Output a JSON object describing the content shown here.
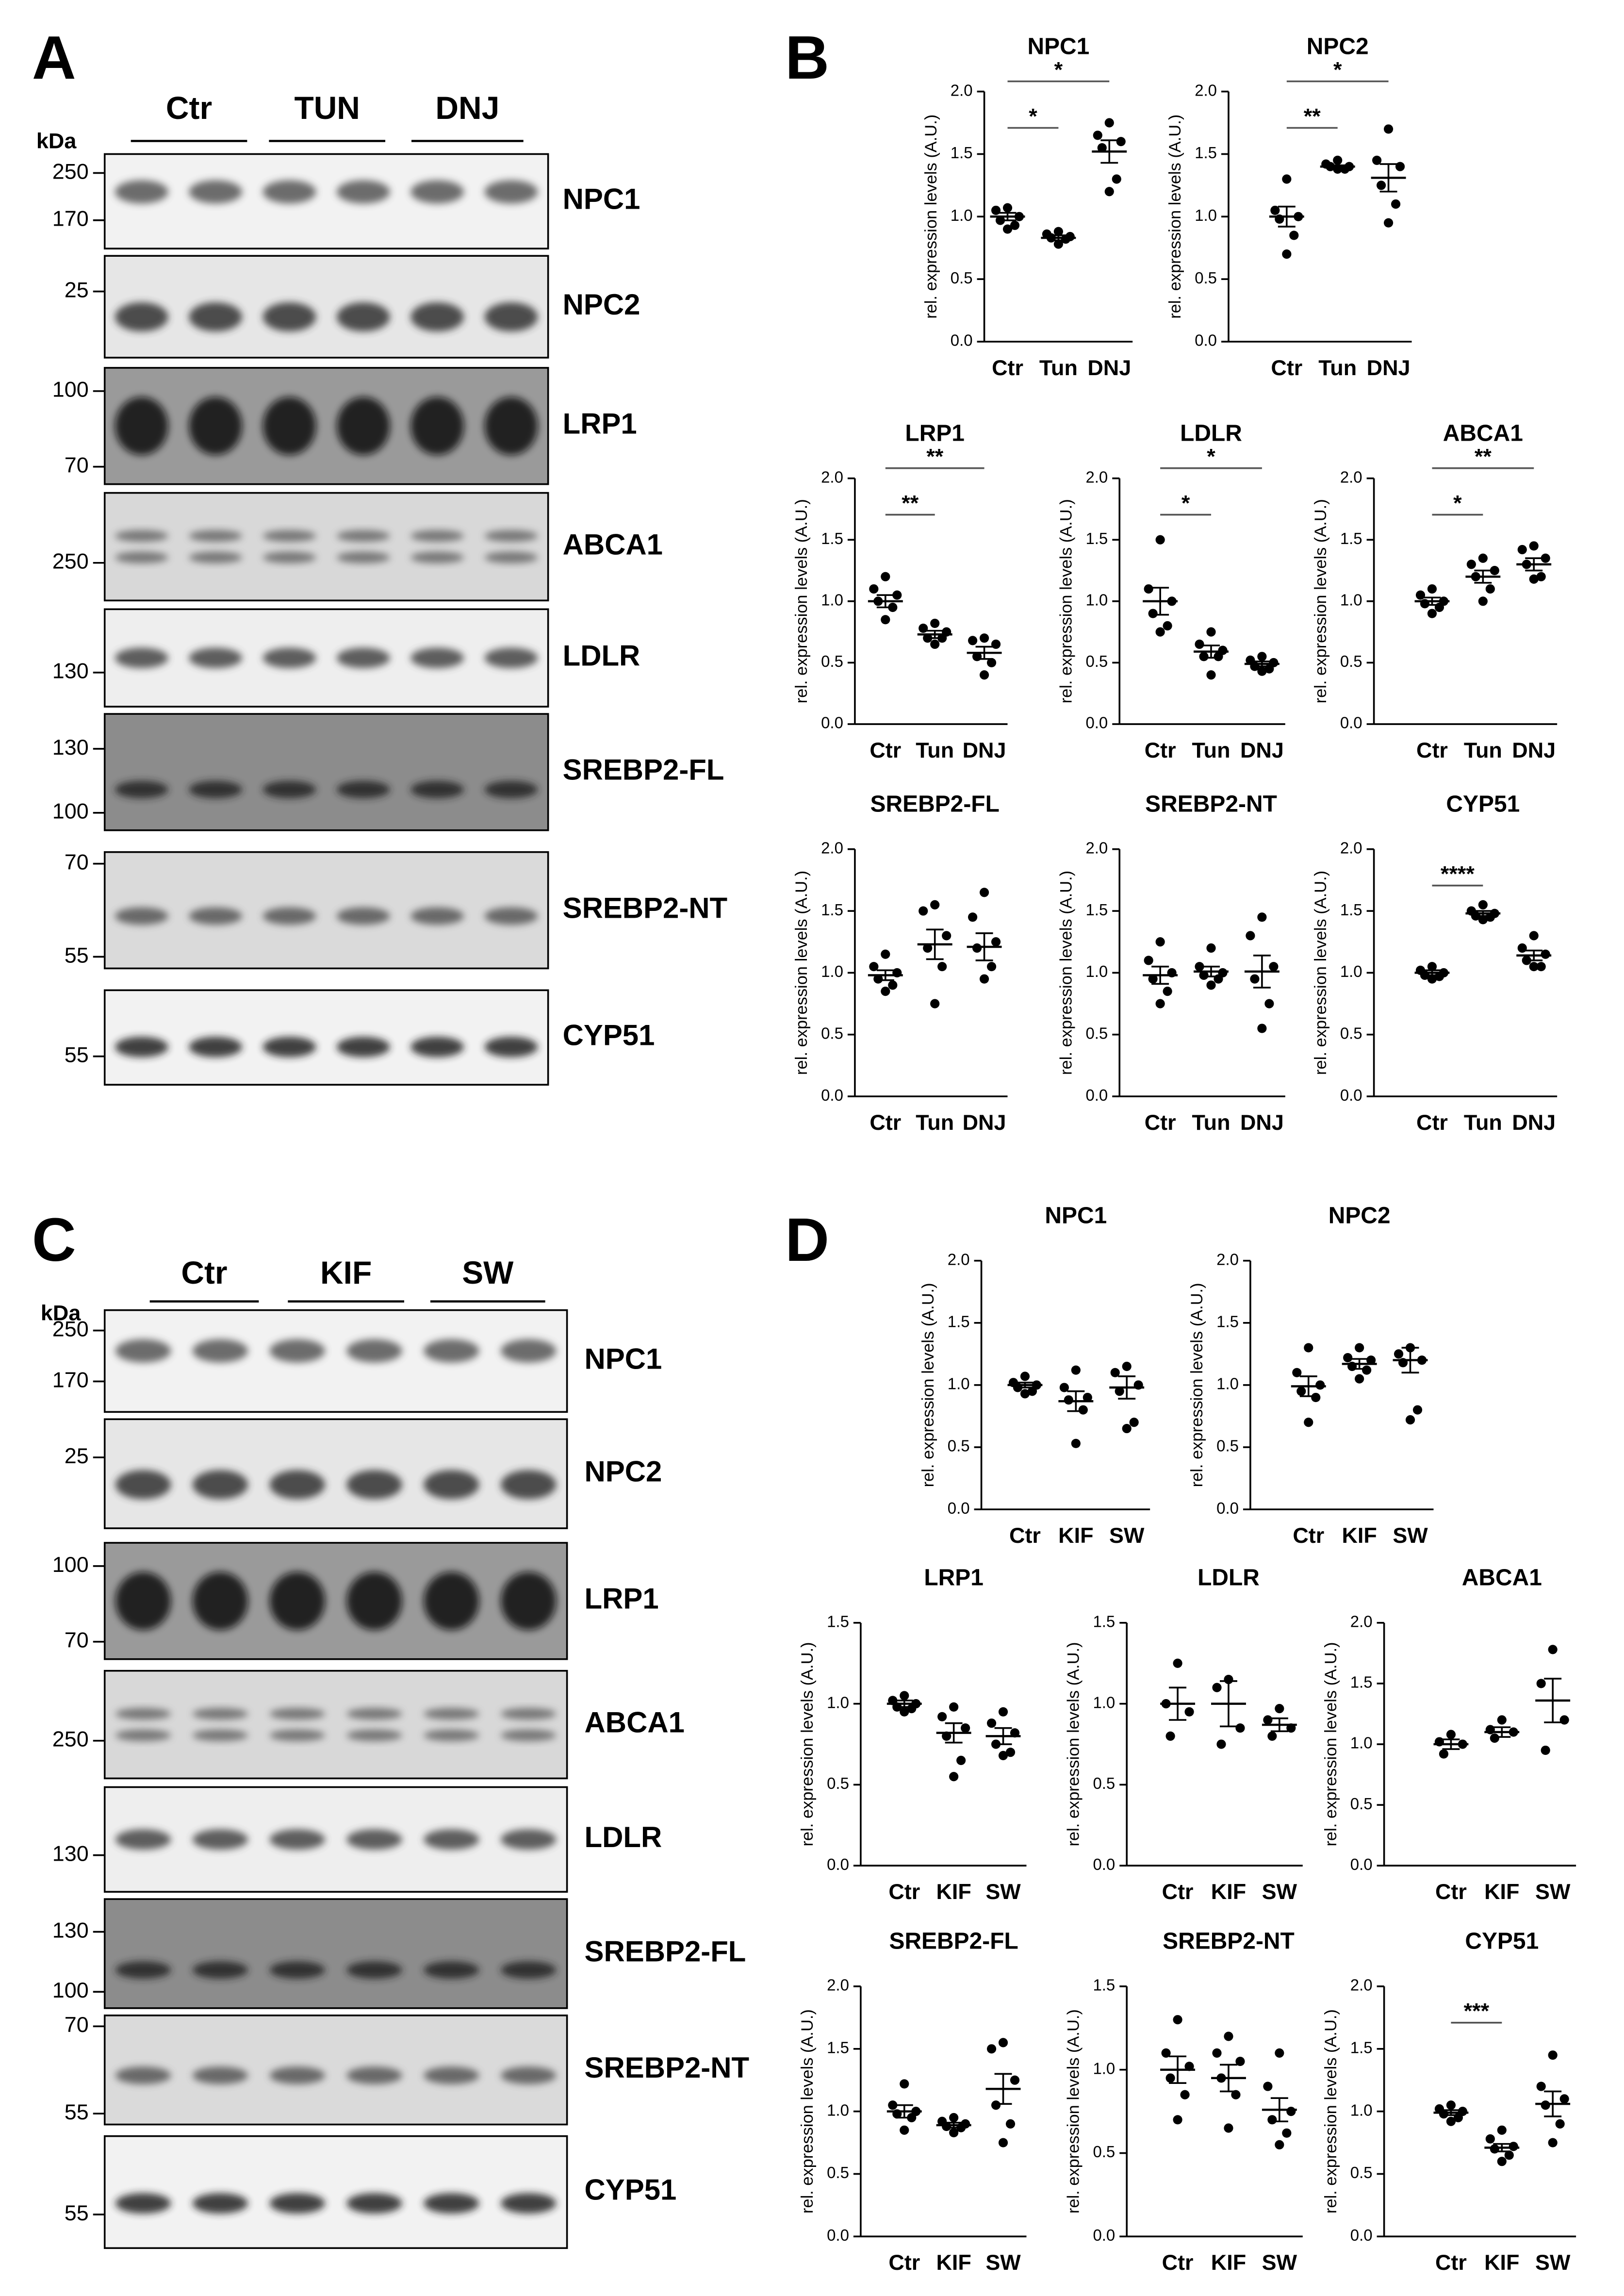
{
  "panels": [
    "A",
    "B",
    "C",
    "D"
  ],
  "blots": [
    {
      "groups": [
        "Ctr",
        "TUN",
        "DNJ"
      ],
      "unit": "kDa",
      "rows": [
        {
          "protein": "NPC1",
          "markers": [
            250,
            170
          ]
        },
        {
          "protein": "NPC2",
          "markers": [
            25
          ]
        },
        {
          "protein": "LRP1",
          "markers": [
            100,
            70
          ]
        },
        {
          "protein": "ABCA1",
          "markers": [
            250
          ]
        },
        {
          "protein": "LDLR",
          "markers": [
            130
          ]
        },
        {
          "protein": "SREBP2-FL",
          "markers": [
            130,
            100
          ]
        },
        {
          "protein": "SREBP2-NT",
          "markers": [
            70,
            55
          ]
        },
        {
          "protein": "CYP51",
          "markers": [
            55
          ]
        }
      ]
    },
    {
      "groups": [
        "Ctr",
        "KIF",
        "SW"
      ],
      "unit": "kDa",
      "rows": [
        {
          "protein": "NPC1",
          "markers": [
            250,
            170
          ]
        },
        {
          "protein": "NPC2",
          "markers": [
            25
          ]
        },
        {
          "protein": "LRP1",
          "markers": [
            100,
            70
          ]
        },
        {
          "protein": "ABCA1",
          "markers": [
            250
          ]
        },
        {
          "protein": "LDLR",
          "markers": [
            130
          ]
        },
        {
          "protein": "SREBP2-FL",
          "markers": [
            130,
            100
          ]
        },
        {
          "protein": "SREBP2-NT",
          "markers": [
            70,
            55
          ]
        },
        {
          "protein": "CYP51",
          "markers": [
            55
          ]
        }
      ]
    }
  ],
  "chart_data": [
    {
      "type": "dotplot",
      "title": "NPC1",
      "ylabel": "rel. expression levels (A.U.)",
      "categories": [
        "Ctr",
        "Tun",
        "DNJ"
      ],
      "points": [
        [
          1.07,
          1.05,
          1.0,
          0.97,
          0.93,
          0.9
        ],
        [
          0.88,
          0.86,
          0.84,
          0.83,
          0.82,
          0.78
        ],
        [
          1.75,
          1.65,
          1.6,
          1.55,
          1.3,
          1.2
        ]
      ],
      "mean": [
        1.0,
        0.83,
        1.52
      ],
      "sem": [
        0.03,
        0.02,
        0.09
      ],
      "comparisons": [
        {
          "groups": [
            0,
            1
          ],
          "label": "*"
        },
        {
          "groups": [
            0,
            2
          ],
          "label": "*"
        }
      ],
      "ylim": [
        0,
        2
      ],
      "yticks": [
        {
          "value": 0,
          "label": "0.0"
        },
        0.5,
        {
          "value": 1,
          "label": "1.0"
        },
        1.5,
        {
          "value": 2,
          "label": "2.0"
        }
      ]
    },
    {
      "type": "dotplot",
      "title": "NPC2",
      "ylabel": "rel. expression levels (A.U.)",
      "categories": [
        "Ctr",
        "Tun",
        "DNJ"
      ],
      "points": [
        [
          1.3,
          1.05,
          1.0,
          0.98,
          0.85,
          0.7
        ],
        [
          1.45,
          1.42,
          1.4,
          1.4,
          1.38,
          1.38
        ],
        [
          1.7,
          1.45,
          1.4,
          1.25,
          1.1,
          0.95
        ]
      ],
      "mean": [
        1.0,
        1.4,
        1.31
      ],
      "sem": [
        0.08,
        0.01,
        0.11
      ],
      "comparisons": [
        {
          "groups": [
            0,
            1
          ],
          "label": "**"
        },
        {
          "groups": [
            0,
            2
          ],
          "label": "*"
        }
      ],
      "ylim": [
        0,
        2
      ],
      "yticks": [
        {
          "value": 0,
          "label": "0.0"
        },
        0.5,
        {
          "value": 1,
          "label": "1.0"
        },
        1.5,
        {
          "value": 2,
          "label": "2.0"
        }
      ]
    },
    {
      "type": "dotplot",
      "title": "LRP1",
      "ylabel": "rel. expression levels (A.U.)",
      "categories": [
        "Ctr",
        "Tun",
        "DNJ"
      ],
      "points": [
        [
          1.2,
          1.1,
          1.05,
          1.0,
          0.95,
          0.85
        ],
        [
          0.82,
          0.78,
          0.75,
          0.7,
          0.7,
          0.65
        ],
        [
          0.7,
          0.68,
          0.65,
          0.55,
          0.5,
          0.4
        ]
      ],
      "mean": [
        1.0,
        0.73,
        0.58
      ],
      "sem": [
        0.05,
        0.03,
        0.05
      ],
      "comparisons": [
        {
          "groups": [
            0,
            1
          ],
          "label": "**"
        },
        {
          "groups": [
            0,
            2
          ],
          "label": "**"
        }
      ],
      "ylim": [
        0,
        2
      ],
      "yticks": [
        {
          "value": 0,
          "label": "0.0"
        },
        0.5,
        {
          "value": 1,
          "label": "1.0"
        },
        1.5,
        {
          "value": 2,
          "label": "2.0"
        }
      ]
    },
    {
      "type": "dotplot",
      "title": "LDLR",
      "ylabel": "rel. expression levels (A.U.)",
      "categories": [
        "Ctr",
        "Tun",
        "DNJ"
      ],
      "points": [
        [
          1.5,
          1.1,
          1.0,
          0.9,
          0.8,
          0.75
        ],
        [
          0.75,
          0.65,
          0.6,
          0.55,
          0.55,
          0.4
        ],
        [
          0.55,
          0.52,
          0.5,
          0.47,
          0.45,
          0.43
        ]
      ],
      "mean": [
        1.0,
        0.59,
        0.49
      ],
      "sem": [
        0.11,
        0.05,
        0.02
      ],
      "comparisons": [
        {
          "groups": [
            0,
            1
          ],
          "label": "*"
        },
        {
          "groups": [
            0,
            2
          ],
          "label": "*"
        }
      ],
      "ylim": [
        0,
        2
      ],
      "yticks": [
        {
          "value": 0,
          "label": "0.0"
        },
        0.5,
        {
          "value": 1,
          "label": "1.0"
        },
        1.5,
        {
          "value": 2,
          "label": "2.0"
        }
      ]
    },
    {
      "type": "dotplot",
      "title": "ABCA1",
      "ylabel": "rel. expression levels (A.U.)",
      "categories": [
        "Ctr",
        "Tun",
        "DNJ"
      ],
      "points": [
        [
          1.1,
          1.05,
          1.0,
          0.98,
          0.95,
          0.9
        ],
        [
          1.35,
          1.3,
          1.25,
          1.2,
          1.1,
          1.0
        ],
        [
          1.45,
          1.42,
          1.35,
          1.3,
          1.2,
          1.18
        ]
      ],
      "mean": [
        1.0,
        1.2,
        1.3
      ],
      "sem": [
        0.03,
        0.05,
        0.05
      ],
      "comparisons": [
        {
          "groups": [
            0,
            1
          ],
          "label": "*"
        },
        {
          "groups": [
            0,
            2
          ],
          "label": "**"
        }
      ],
      "ylim": [
        0,
        2
      ],
      "yticks": [
        {
          "value": 0,
          "label": "0.0"
        },
        0.5,
        {
          "value": 1,
          "label": "1.0"
        },
        1.5,
        {
          "value": 2,
          "label": "2.0"
        }
      ]
    },
    {
      "type": "dotplot",
      "title": "SREBP2-FL",
      "ylabel": "rel. expression levels (A.U.)",
      "categories": [
        "Ctr",
        "Tun",
        "DNJ"
      ],
      "points": [
        [
          1.15,
          1.05,
          1.0,
          0.95,
          0.9,
          0.85
        ],
        [
          1.55,
          1.5,
          1.3,
          1.2,
          1.05,
          0.75
        ],
        [
          1.65,
          1.45,
          1.25,
          1.2,
          1.05,
          0.95
        ]
      ],
      "mean": [
        0.98,
        1.23,
        1.21
      ],
      "sem": [
        0.04,
        0.12,
        0.11
      ],
      "comparisons": [],
      "ylim": [
        0,
        2
      ],
      "yticks": [
        {
          "value": 0,
          "label": "0.0"
        },
        0.5,
        {
          "value": 1,
          "label": "1.0"
        },
        1.5,
        {
          "value": 2,
          "label": "2.0"
        }
      ]
    },
    {
      "type": "dotplot",
      "title": "SREBP2-NT",
      "ylabel": "rel. expression levels (A.U.)",
      "categories": [
        "Ctr",
        "Tun",
        "DNJ"
      ],
      "points": [
        [
          1.25,
          1.1,
          1.0,
          0.95,
          0.85,
          0.75
        ],
        [
          1.2,
          1.05,
          1.0,
          0.98,
          0.95,
          0.9
        ],
        [
          1.45,
          1.3,
          1.05,
          0.95,
          0.75,
          0.55
        ]
      ],
      "mean": [
        0.98,
        1.01,
        1.01
      ],
      "sem": [
        0.07,
        0.04,
        0.13
      ],
      "comparisons": [],
      "ylim": [
        0,
        2
      ],
      "yticks": [
        {
          "value": 0,
          "label": "0.0"
        },
        0.5,
        {
          "value": 1,
          "label": "1.0"
        },
        1.5,
        {
          "value": 2,
          "label": "2.0"
        }
      ]
    },
    {
      "type": "dotplot",
      "title": "CYP51",
      "ylabel": "rel. expression levels (A.U.)",
      "categories": [
        "Ctr",
        "Tun",
        "DNJ"
      ],
      "points": [
        [
          1.05,
          1.02,
          1.0,
          0.98,
          0.97,
          0.95
        ],
        [
          1.55,
          1.5,
          1.48,
          1.46,
          1.45,
          1.43
        ],
        [
          1.3,
          1.2,
          1.15,
          1.1,
          1.05,
          1.05
        ]
      ],
      "mean": [
        1.0,
        1.48,
        1.14
      ],
      "sem": [
        0.02,
        0.02,
        0.04
      ],
      "comparisons": [
        {
          "groups": [
            0,
            1
          ],
          "label": "****"
        }
      ],
      "ylim": [
        0,
        2
      ],
      "yticks": [
        {
          "value": 0,
          "label": "0.0"
        },
        0.5,
        {
          "value": 1,
          "label": "1.0"
        },
        1.5,
        {
          "value": 2,
          "label": "2.0"
        }
      ]
    },
    {
      "type": "dotplot",
      "title": "NPC1",
      "ylabel": "rel. expression levels (A.U.)",
      "categories": [
        "Ctr",
        "KIF",
        "SW"
      ],
      "points": [
        [
          1.07,
          1.02,
          1.0,
          0.98,
          0.95,
          0.93
        ],
        [
          1.12,
          0.98,
          0.9,
          0.88,
          0.8,
          0.53
        ],
        [
          1.15,
          1.1,
          1.0,
          0.95,
          0.7,
          0.65
        ]
      ],
      "mean": [
        1.0,
        0.87,
        0.98
      ],
      "sem": [
        0.02,
        0.08,
        0.09
      ],
      "comparisons": [],
      "ylim": [
        0,
        2
      ],
      "yticks": [
        {
          "value": 0,
          "label": "0.0"
        },
        0.5,
        {
          "value": 1,
          "label": "1.0"
        },
        1.5,
        {
          "value": 2,
          "label": "2.0"
        }
      ]
    },
    {
      "type": "dotplot",
      "title": "NPC2",
      "ylabel": "rel. expression levels (A.U.)",
      "categories": [
        "Ctr",
        "KIF",
        "SW"
      ],
      "points": [
        [
          1.3,
          1.1,
          1.0,
          0.95,
          0.9,
          0.7
        ],
        [
          1.3,
          1.22,
          1.2,
          1.15,
          1.12,
          1.05
        ],
        [
          1.3,
          1.25,
          1.2,
          1.18,
          0.8,
          0.72
        ]
      ],
      "mean": [
        0.99,
        1.17,
        1.2
      ],
      "sem": [
        0.08,
        0.04,
        0.1
      ],
      "comparisons": [],
      "ylim": [
        0,
        2
      ],
      "yticks": [
        {
          "value": 0,
          "label": "0.0"
        },
        0.5,
        {
          "value": 1,
          "label": "1.0"
        },
        1.5,
        {
          "value": 2,
          "label": "2.0"
        }
      ]
    },
    {
      "type": "dotplot",
      "title": "LRP1",
      "ylabel": "rel. expression levels (A.U.)",
      "categories": [
        "Ctr",
        "KIF",
        "SW"
      ],
      "points": [
        [
          1.05,
          1.02,
          1.0,
          0.98,
          0.97,
          0.95
        ],
        [
          0.98,
          0.92,
          0.85,
          0.8,
          0.65,
          0.55
        ],
        [
          0.95,
          0.88,
          0.82,
          0.75,
          0.7,
          0.68
        ]
      ],
      "mean": [
        1.0,
        0.82,
        0.8
      ],
      "sem": [
        0.02,
        0.06,
        0.05
      ],
      "comparisons": [],
      "ylim": [
        0,
        1.5
      ],
      "yticks": [
        {
          "value": 0,
          "label": "0.0"
        },
        0.5,
        {
          "value": 1,
          "label": "1.0"
        },
        1.5
      ]
    },
    {
      "type": "dotplot",
      "title": "LDLR",
      "ylabel": "rel. expression levels (A.U.)",
      "categories": [
        "Ctr",
        "KIF",
        "SW"
      ],
      "points": [
        [
          1.25,
          1.0,
          0.95,
          0.8
        ],
        [
          1.15,
          1.1,
          0.85,
          0.75
        ],
        [
          0.97,
          0.9,
          0.85,
          0.8
        ]
      ],
      "mean": [
        1.0,
        1.0,
        0.87
      ],
      "sem": [
        0.1,
        0.14,
        0.04
      ],
      "comparisons": [],
      "ylim": [
        0,
        1.5
      ],
      "yticks": [
        {
          "value": 0,
          "label": "0.0"
        },
        0.5,
        {
          "value": 1,
          "label": "1.0"
        },
        1.5
      ]
    },
    {
      "type": "dotplot",
      "title": "ABCA1",
      "ylabel": "rel. expression levels (A.U.)",
      "categories": [
        "Ctr",
        "KIF",
        "SW"
      ],
      "points": [
        [
          1.08,
          1.02,
          1.0,
          0.92
        ],
        [
          1.2,
          1.12,
          1.1,
          1.05
        ],
        [
          1.78,
          1.5,
          1.2,
          0.95
        ]
      ],
      "mean": [
        1.0,
        1.1,
        1.36
      ],
      "sem": [
        0.04,
        0.04,
        0.18
      ],
      "comparisons": [],
      "ylim": [
        0,
        2
      ],
      "yticks": [
        {
          "value": 0,
          "label": "0.0"
        },
        0.5,
        {
          "value": 1,
          "label": "1.0"
        },
        1.5,
        {
          "value": 2,
          "label": "2.0"
        }
      ]
    },
    {
      "type": "dotplot",
      "title": "SREBP2-FL",
      "ylabel": "rel. expression levels (A.U.)",
      "categories": [
        "Ctr",
        "KIF",
        "SW"
      ],
      "points": [
        [
          1.22,
          1.05,
          1.0,
          0.98,
          0.95,
          0.85
        ],
        [
          0.95,
          0.92,
          0.9,
          0.88,
          0.87,
          0.83
        ],
        [
          1.55,
          1.5,
          1.25,
          1.05,
          0.9,
          0.75
        ]
      ],
      "mean": [
        1.0,
        0.89,
        1.18
      ],
      "sem": [
        0.05,
        0.02,
        0.12
      ],
      "comparisons": [],
      "ylim": [
        0,
        2
      ],
      "yticks": [
        {
          "value": 0,
          "label": "0.0"
        },
        0.5,
        {
          "value": 1,
          "label": "1.0"
        },
        1.5,
        {
          "value": 2,
          "label": "2.0"
        }
      ]
    },
    {
      "type": "dotplot",
      "title": "SREBP2-NT",
      "ylabel": "rel. expression levels (A.U.)",
      "categories": [
        "Ctr",
        "KIF",
        "SW"
      ],
      "points": [
        [
          1.3,
          1.1,
          1.02,
          0.95,
          0.85,
          0.7
        ],
        [
          1.2,
          1.1,
          1.05,
          0.95,
          0.85,
          0.65
        ],
        [
          1.1,
          0.9,
          0.75,
          0.7,
          0.62,
          0.55
        ]
      ],
      "mean": [
        1.0,
        0.95,
        0.76
      ],
      "sem": [
        0.08,
        0.08,
        0.07
      ],
      "comparisons": [],
      "ylim": [
        0,
        1.5
      ],
      "yticks": [
        {
          "value": 0,
          "label": "0.0"
        },
        0.5,
        {
          "value": 1,
          "label": "1.0"
        },
        1.5
      ]
    },
    {
      "type": "dotplot",
      "title": "CYP51",
      "ylabel": "rel. expression levels (A.U.)",
      "categories": [
        "Ctr",
        "KIF",
        "SW"
      ],
      "points": [
        [
          1.05,
          1.02,
          1.0,
          0.98,
          0.95,
          0.92
        ],
        [
          0.85,
          0.78,
          0.72,
          0.7,
          0.65,
          0.6
        ],
        [
          1.45,
          1.2,
          1.1,
          1.05,
          0.9,
          0.75
        ]
      ],
      "mean": [
        0.99,
        0.71,
        1.06
      ],
      "sem": [
        0.02,
        0.03,
        0.1
      ],
      "comparisons": [
        {
          "groups": [
            0,
            1
          ],
          "label": "***"
        }
      ],
      "ylim": [
        0,
        2
      ],
      "yticks": [
        {
          "value": 0,
          "label": "0.0"
        },
        0.5,
        {
          "value": 1,
          "label": "1.0"
        },
        1.5,
        {
          "value": 2,
          "label": "2.0"
        }
      ]
    }
  ]
}
